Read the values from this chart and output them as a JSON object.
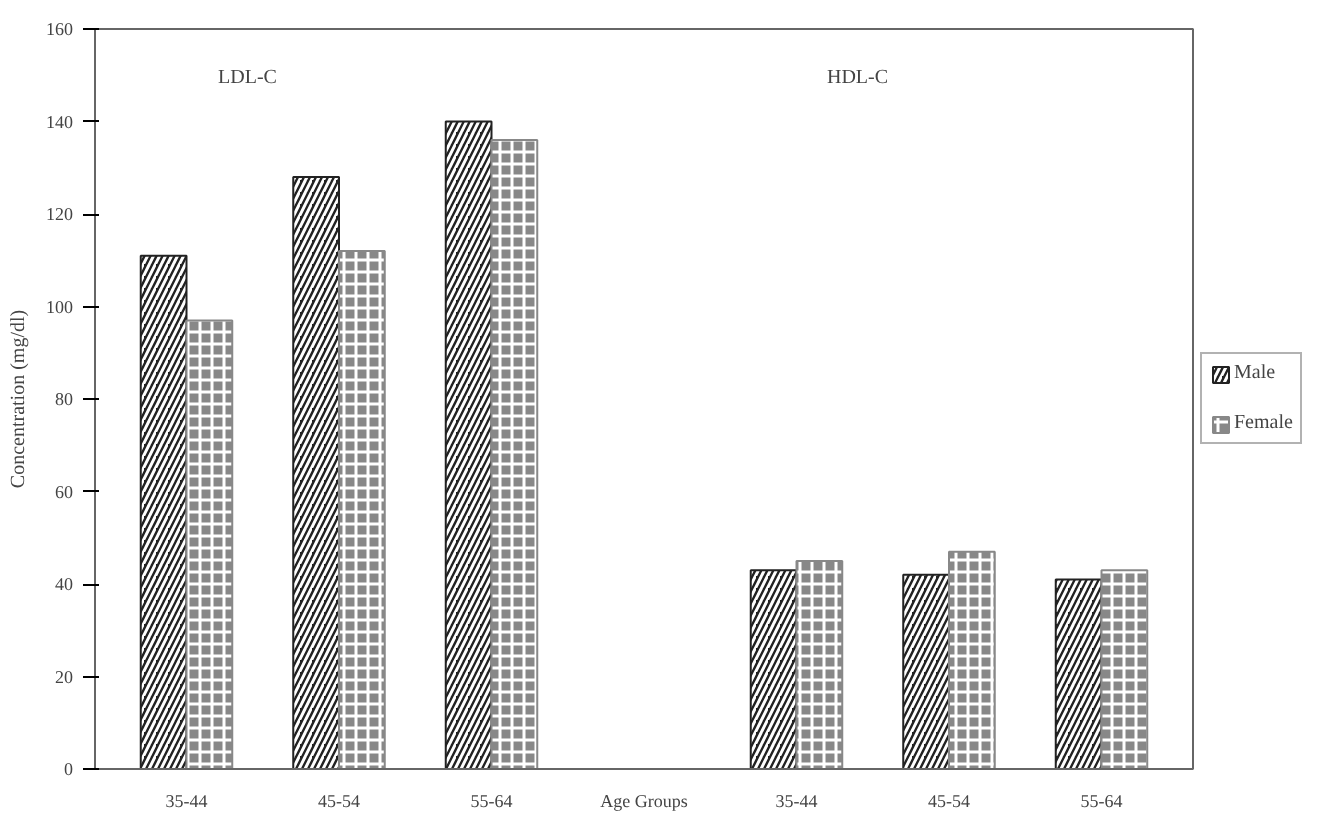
{
  "chart_data": {
    "type": "bar",
    "ylabel": "Concentration (mg/dl)",
    "categories": [
      "35-44",
      "45-54",
      "55-64",
      "Age Groups",
      "35-44",
      "45-54",
      "55-64"
    ],
    "series": [
      {
        "name": "Male",
        "color": "#222222",
        "values": [
          111,
          128,
          140,
          null,
          43,
          42,
          41
        ]
      },
      {
        "name": "Female",
        "color": "#888888",
        "values": [
          97,
          112,
          136,
          null,
          45,
          47,
          43
        ]
      }
    ],
    "ylim": [
      0,
      160
    ],
    "yticks": [
      0,
      20,
      40,
      60,
      80,
      100,
      120,
      140,
      160
    ],
    "annotations": [
      "LDL-C",
      "HDL-C"
    ],
    "grid": false,
    "legend": "right"
  }
}
